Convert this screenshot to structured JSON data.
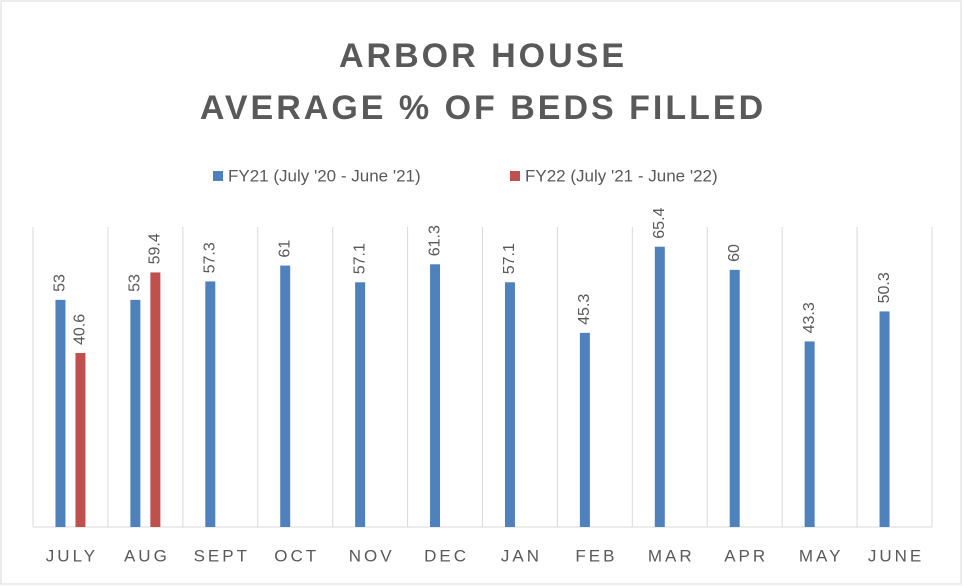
{
  "chart_data": {
    "type": "bar",
    "title": [
      "ARBOR HOUSE",
      "AVERAGE % OF BEDS FILLED"
    ],
    "categories": [
      "JULY",
      "AUG",
      "SEPT",
      "OCT",
      "NOV",
      "DEC",
      "JAN",
      "FEB",
      "MAR",
      "APR",
      "MAY",
      "JUNE"
    ],
    "series": [
      {
        "name": "FY21 (July '20 - June '21)",
        "color": "#4f81bd",
        "values": [
          53,
          53,
          57.3,
          61,
          57.1,
          61.3,
          57.1,
          45.3,
          65.4,
          60,
          43.3,
          50.3
        ]
      },
      {
        "name": "FY22 (July '21 - June '22)",
        "color": "#c0504d",
        "values": [
          40.6,
          59.4,
          null,
          null,
          null,
          null,
          null,
          null,
          null,
          null,
          null,
          null
        ]
      }
    ],
    "ylim": [
      0,
      70
    ],
    "legend": "top"
  }
}
